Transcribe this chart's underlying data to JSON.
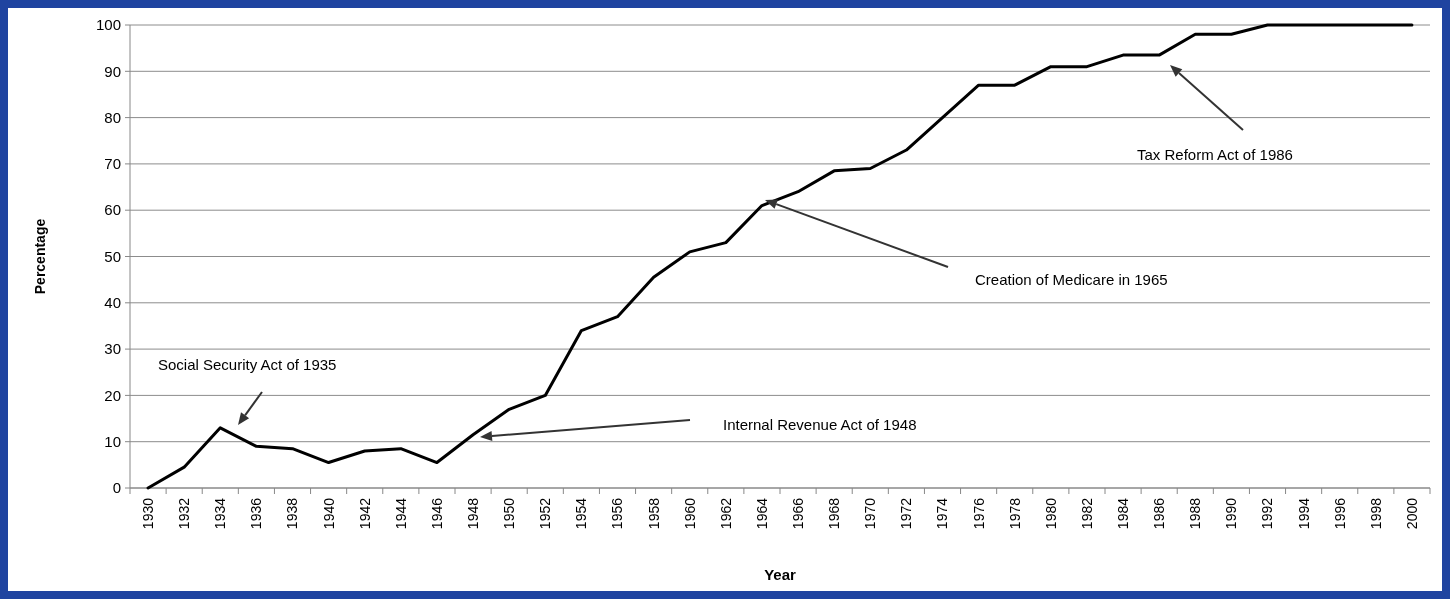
{
  "chart_data": {
    "type": "line",
    "xlabel": "Year",
    "ylabel": "Percentage",
    "categories": [
      "1930",
      "1932",
      "1934",
      "1936",
      "1938",
      "1940",
      "1942",
      "1944",
      "1946",
      "1948",
      "1950",
      "1952",
      "1954",
      "1956",
      "1958",
      "1960",
      "1962",
      "1964",
      "1966",
      "1968",
      "1970",
      "1972",
      "1974",
      "1976",
      "1978",
      "1980",
      "1982",
      "1984",
      "1986",
      "1988",
      "1990",
      "1992",
      "1994",
      "1996",
      "1998",
      "2000"
    ],
    "series": [
      {
        "color": "#000000",
        "values": [
          0,
          4.5,
          13,
          9,
          8.5,
          5.5,
          8,
          8.5,
          5.5,
          11.5,
          17,
          20,
          34,
          37,
          45.5,
          51,
          53,
          61,
          64,
          68.5,
          69,
          73,
          80,
          87,
          87,
          91,
          91,
          93.5,
          93.5,
          98,
          98,
          100,
          100,
          100,
          100,
          100
        ]
      }
    ],
    "ylim": [
      0,
      100
    ],
    "yticks": [
      0,
      10,
      20,
      30,
      40,
      50,
      60,
      70,
      80,
      90,
      100
    ],
    "grid": "y",
    "marker": "none",
    "line_style": "solid",
    "annotations": [
      "Social Security Act of 1935",
      "Internal Revenue Act of 1948",
      "Creation of Medicare in 1965",
      "Tax Reform Act of 1986"
    ]
  }
}
